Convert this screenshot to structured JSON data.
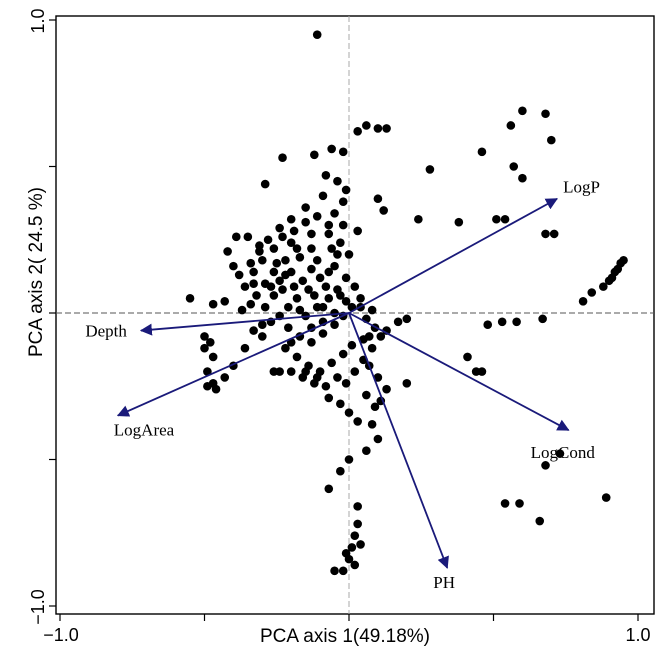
{
  "chart_data": {
    "type": "scatter",
    "xlabel": "PCA axis 1(49.18%)",
    "ylabel": "PCA axis 2( 24.5 %)",
    "xlim": [
      -1.0,
      1.0
    ],
    "ylim": [
      -1.0,
      1.0
    ],
    "xticks": [
      "−1.0",
      "1.0"
    ],
    "yticks": [
      "−1.0",
      "1.0"
    ],
    "reference_lines": {
      "x": 0,
      "y": 0,
      "style": "dashed"
    },
    "point_color": "#000000",
    "vector_color": "#1a1a7a",
    "vectors": [
      {
        "name": "LogP",
        "x": 0.72,
        "y": 0.39
      },
      {
        "name": "Depth",
        "x": -0.72,
        "y": -0.06
      },
      {
        "name": "LogArea",
        "x": -0.8,
        "y": -0.35
      },
      {
        "name": "LogCond",
        "x": 0.76,
        "y": -0.4
      },
      {
        "name": "PH",
        "x": 0.34,
        "y": -0.87
      }
    ],
    "points": [
      [
        -0.11,
        0.95
      ],
      [
        0.6,
        0.69
      ],
      [
        0.68,
        0.68
      ],
      [
        0.7,
        0.59
      ],
      [
        0.56,
        0.64
      ],
      [
        0.46,
        0.55
      ],
      [
        0.57,
        0.5
      ],
      [
        0.6,
        0.46
      ],
      [
        0.28,
        0.49
      ],
      [
        0.03,
        0.62
      ],
      [
        0.06,
        0.64
      ],
      [
        0.1,
        0.63
      ],
      [
        0.13,
        0.63
      ],
      [
        -0.23,
        0.53
      ],
      [
        -0.12,
        0.54
      ],
      [
        -0.06,
        0.56
      ],
      [
        -0.02,
        0.55
      ],
      [
        -0.29,
        0.44
      ],
      [
        -0.08,
        0.47
      ],
      [
        0.1,
        0.39
      ],
      [
        0.12,
        0.35
      ],
      [
        0.24,
        0.32
      ],
      [
        0.38,
        0.31
      ],
      [
        0.51,
        0.32
      ],
      [
        0.54,
        0.32
      ],
      [
        0.68,
        0.27
      ],
      [
        0.71,
        0.27
      ],
      [
        0.95,
        0.18
      ],
      [
        0.94,
        0.17
      ],
      [
        0.93,
        0.15
      ],
      [
        0.92,
        0.14
      ],
      [
        0.91,
        0.12
      ],
      [
        0.9,
        0.11
      ],
      [
        0.88,
        0.09
      ],
      [
        0.84,
        0.07
      ],
      [
        0.81,
        0.04
      ],
      [
        0.67,
        -0.02
      ],
      [
        0.58,
        -0.03
      ],
      [
        0.53,
        -0.03
      ],
      [
        0.48,
        -0.04
      ],
      [
        0.2,
        -0.02
      ],
      [
        0.17,
        -0.03
      ],
      [
        0.13,
        -0.06
      ],
      [
        0.07,
        -0.08
      ],
      [
        0.41,
        -0.15
      ],
      [
        0.44,
        -0.2
      ],
      [
        0.46,
        -0.2
      ],
      [
        0.2,
        -0.24
      ],
      [
        0.73,
        -0.48
      ],
      [
        0.68,
        -0.52
      ],
      [
        0.89,
        -0.63
      ],
      [
        0.54,
        -0.65
      ],
      [
        0.59,
        -0.65
      ],
      [
        0.66,
        -0.71
      ],
      [
        -0.55,
        0.05
      ],
      [
        -0.47,
        0.03
      ],
      [
        -0.43,
        0.04
      ],
      [
        -0.5,
        -0.08
      ],
      [
        -0.5,
        -0.12
      ],
      [
        -0.48,
        -0.1
      ],
      [
        -0.47,
        -0.15
      ],
      [
        -0.49,
        -0.2
      ],
      [
        -0.47,
        -0.24
      ],
      [
        -0.49,
        -0.25
      ],
      [
        -0.46,
        -0.26
      ],
      [
        -0.43,
        -0.22
      ],
      [
        -0.4,
        -0.18
      ],
      [
        -0.36,
        -0.12
      ],
      [
        -0.3,
        -0.08
      ],
      [
        -0.27,
        -0.03
      ],
      [
        -0.37,
        0.01
      ],
      [
        -0.34,
        0.03
      ],
      [
        -0.32,
        0.06
      ],
      [
        -0.29,
        0.1
      ],
      [
        -0.26,
        0.14
      ],
      [
        -0.22,
        0.18
      ],
      [
        -0.18,
        0.22
      ],
      [
        -0.13,
        0.27
      ],
      [
        -0.07,
        0.3
      ],
      [
        -0.05,
        0.34
      ],
      [
        -0.02,
        0.38
      ],
      [
        -0.01,
        0.42
      ],
      [
        -0.04,
        0.45
      ],
      [
        -0.09,
        0.4
      ],
      [
        -0.15,
        0.36
      ],
      [
        -0.2,
        0.32
      ],
      [
        -0.24,
        0.29
      ],
      [
        -0.28,
        0.25
      ],
      [
        -0.31,
        0.21
      ],
      [
        -0.34,
        0.17
      ],
      [
        -0.38,
        0.13
      ],
      [
        -0.36,
        0.09
      ],
      [
        -0.33,
        0.14
      ],
      [
        -0.3,
        0.18
      ],
      [
        -0.26,
        0.22
      ],
      [
        -0.23,
        0.26
      ],
      [
        -0.19,
        0.28
      ],
      [
        -0.15,
        0.31
      ],
      [
        -0.11,
        0.33
      ],
      [
        -0.07,
        0.27
      ],
      [
        -0.03,
        0.24
      ],
      [
        0.0,
        0.2
      ],
      [
        -0.05,
        0.16
      ],
      [
        -0.1,
        0.12
      ],
      [
        -0.14,
        0.08
      ],
      [
        -0.18,
        0.05
      ],
      [
        -0.21,
        0.02
      ],
      [
        -0.24,
        -0.01
      ],
      [
        -0.21,
        -0.05
      ],
      [
        -0.17,
        -0.08
      ],
      [
        -0.13,
        -0.1
      ],
      [
        -0.09,
        -0.07
      ],
      [
        -0.05,
        -0.04
      ],
      [
        -0.02,
        -0.01
      ],
      [
        0.01,
        0.02
      ],
      [
        0.04,
        0.05
      ],
      [
        0.02,
        0.09
      ],
      [
        -0.01,
        0.12
      ],
      [
        -0.04,
        0.08
      ],
      [
        -0.07,
        0.05
      ],
      [
        -0.11,
        0.02
      ],
      [
        -0.15,
        -0.01
      ],
      [
        -0.19,
        0.09
      ],
      [
        -0.22,
        0.13
      ],
      [
        -0.26,
        0.06
      ],
      [
        -0.29,
        0.02
      ],
      [
        -0.22,
        -0.12
      ],
      [
        -0.18,
        -0.15
      ],
      [
        -0.14,
        -0.18
      ],
      [
        -0.1,
        -0.2
      ],
      [
        -0.06,
        -0.17
      ],
      [
        -0.02,
        -0.14
      ],
      [
        0.01,
        -0.11
      ],
      [
        0.05,
        -0.09
      ],
      [
        0.08,
        -0.12
      ],
      [
        0.05,
        -0.16
      ],
      [
        0.02,
        -0.2
      ],
      [
        -0.01,
        -0.24
      ],
      [
        -0.04,
        -0.22
      ],
      [
        -0.08,
        -0.25
      ],
      [
        -0.12,
        -0.24
      ],
      [
        -0.16,
        -0.22
      ],
      [
        -0.26,
        -0.2
      ],
      [
        -0.24,
        -0.2
      ],
      [
        -0.2,
        -0.2
      ],
      [
        -0.15,
        -0.2
      ],
      [
        -0.11,
        -0.22
      ],
      [
        -0.07,
        -0.29
      ],
      [
        -0.03,
        -0.31
      ],
      [
        0.0,
        -0.34
      ],
      [
        0.03,
        -0.37
      ],
      [
        0.06,
        -0.28
      ],
      [
        0.09,
        -0.32
      ],
      [
        0.11,
        -0.3
      ],
      [
        0.13,
        -0.26
      ],
      [
        0.1,
        -0.22
      ],
      [
        0.07,
        -0.18
      ],
      [
        0.08,
        -0.38
      ],
      [
        0.1,
        -0.43
      ],
      [
        0.06,
        -0.47
      ],
      [
        0.0,
        -0.5
      ],
      [
        -0.03,
        -0.54
      ],
      [
        -0.07,
        -0.6
      ],
      [
        0.03,
        -0.66
      ],
      [
        0.03,
        -0.72
      ],
      [
        0.02,
        -0.76
      ],
      [
        0.01,
        -0.8
      ],
      [
        0.0,
        -0.84
      ],
      [
        -0.02,
        -0.88
      ],
      [
        -0.05,
        -0.88
      ],
      [
        0.02,
        -0.86
      ],
      [
        -0.01,
        -0.82
      ],
      [
        0.04,
        -0.79
      ],
      [
        -0.09,
        0.02
      ],
      [
        -0.12,
        0.06
      ],
      [
        -0.16,
        0.11
      ],
      [
        -0.2,
        0.14
      ],
      [
        -0.25,
        0.17
      ],
      [
        -0.31,
        0.23
      ],
      [
        -0.35,
        0.26
      ],
      [
        -0.39,
        0.26
      ],
      [
        -0.42,
        0.21
      ],
      [
        -0.4,
        0.16
      ],
      [
        -0.33,
        0.1
      ],
      [
        -0.11,
        0.18
      ],
      [
        -0.07,
        0.14
      ],
      [
        -0.04,
        0.2
      ],
      [
        0.03,
        0.28
      ],
      [
        -0.02,
        0.3
      ],
      [
        -0.06,
        0.22
      ],
      [
        -0.13,
        0.22
      ],
      [
        -0.17,
        0.19
      ],
      [
        -0.2,
        0.24
      ],
      [
        -0.24,
        0.11
      ],
      [
        -0.27,
        0.09
      ],
      [
        -0.3,
        -0.04
      ],
      [
        -0.33,
        -0.06
      ],
      [
        -0.23,
        0.08
      ],
      [
        -0.13,
        0.15
      ],
      [
        -0.08,
        0.09
      ],
      [
        -0.03,
        0.06
      ],
      [
        0.06,
        -0.02
      ],
      [
        0.09,
        -0.05
      ],
      [
        0.11,
        -0.08
      ],
      [
        0.08,
        0.01
      ],
      [
        0.04,
        0.02
      ],
      [
        -0.01,
        0.04
      ],
      [
        -0.05,
        0.0
      ],
      [
        -0.09,
        -0.03
      ],
      [
        -0.13,
        -0.05
      ],
      [
        -0.17,
        0.01
      ],
      [
        -0.2,
        -0.1
      ]
    ]
  }
}
